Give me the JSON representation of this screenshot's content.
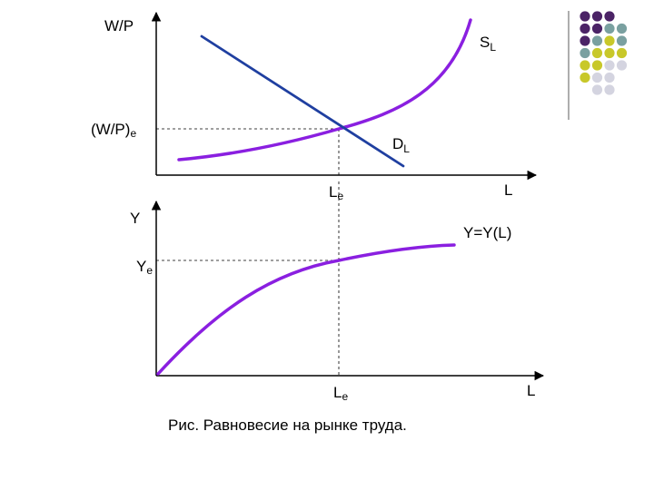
{
  "top_graph": {
    "y_axis_label": "W/P",
    "x_axis_label": "L",
    "eq_wage_label": "(W/P)",
    "eq_wage_sub": "e",
    "supply_label": "S",
    "supply_sub": "L",
    "demand_label": "D",
    "demand_sub": "L",
    "eq_labor_label": "L",
    "eq_labor_sub": "e"
  },
  "bottom_graph": {
    "y_axis_label": "Y",
    "x_axis_label": "L",
    "function_label": "Y=Y(L)",
    "eq_output_label": "Y",
    "eq_output_sub": "e",
    "eq_labor_label": "L",
    "eq_labor_sub": "e"
  },
  "caption": "Рис. Равновесие на рынке труда.",
  "colors": {
    "supply_curve": "#8a1fe0",
    "demand_curve": "#1f3fa0",
    "production_curve": "#8a1fe0",
    "decor_dark": "#4b2366",
    "decor_teal": "#7aa0a0",
    "decor_olive": "#c8c82a",
    "decor_light": "#d4d4e0"
  },
  "decoration": {
    "dot_grid": [
      [
        "decor_dark",
        "decor_dark",
        "decor_dark",
        null
      ],
      [
        "decor_dark",
        "decor_dark",
        "decor_teal",
        "decor_teal"
      ],
      [
        "decor_dark",
        "decor_teal",
        "decor_olive",
        "decor_teal"
      ],
      [
        "decor_teal",
        "decor_olive",
        "decor_olive",
        "decor_olive"
      ],
      [
        "decor_olive",
        "decor_olive",
        "decor_light",
        "decor_light"
      ],
      [
        "decor_olive",
        "decor_light",
        "decor_light",
        null
      ],
      [
        null,
        "decor_light",
        "decor_light",
        null
      ]
    ]
  }
}
